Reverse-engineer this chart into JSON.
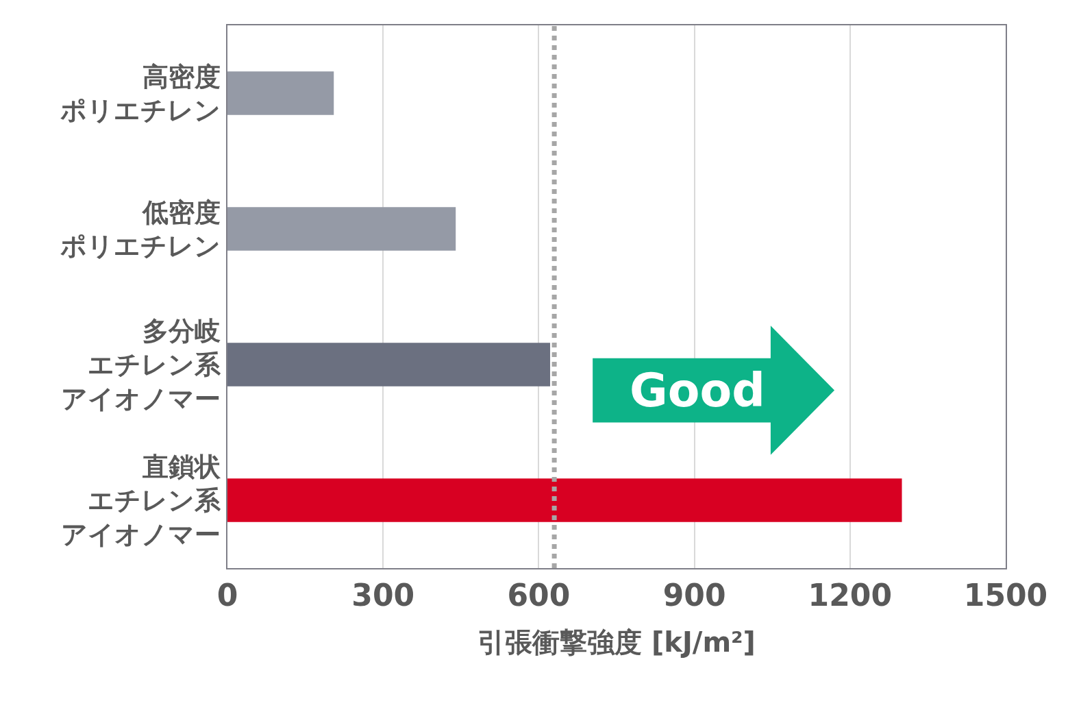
{
  "chart_data": {
    "type": "bar",
    "orientation": "horizontal",
    "categories": [
      "高密度ポリエチレン",
      "低密度ポリエチレン",
      "多分岐エチレン系アイオノマー",
      "直鎖状エチレン系アイオノマー"
    ],
    "values": [
      205,
      440,
      622,
      1300
    ],
    "colors": [
      "#959aa6",
      "#959aa6",
      "#6b7080",
      "#d80022"
    ],
    "xlabel": "引張衝撃強度 [kJ/m²]",
    "xlim": [
      0,
      1500
    ],
    "xticks": [
      0,
      300,
      600,
      900,
      1200,
      1500
    ],
    "grid": "x",
    "ref_lines": [
      {
        "axis": "x",
        "value": 630,
        "color": "#a6a6a6",
        "line_style": "dotted"
      }
    ],
    "annotations": [
      "Good"
    ]
  }
}
